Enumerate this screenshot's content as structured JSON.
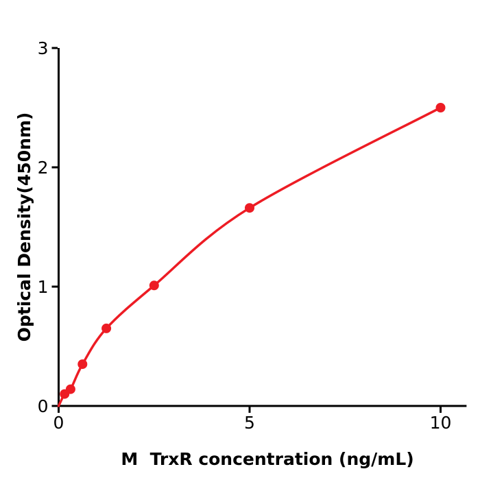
{
  "figure": {
    "background": "#ffffff"
  },
  "chart_data": {
    "type": "scatter",
    "title": "",
    "xlabel": "M  TrxR concentration (ng/mL)",
    "ylabel": "Optical Density(450nm)",
    "x": [
      0.156,
      0.313,
      0.625,
      1.25,
      2.5,
      5,
      10
    ],
    "y": [
      0.1,
      0.14,
      0.35,
      0.65,
      1.01,
      1.66,
      2.5
    ],
    "fit_line": {
      "description": "smooth fitted curve through origin and all data points",
      "anchors": [
        [
          0,
          0
        ],
        [
          0.156,
          0.1
        ],
        [
          0.313,
          0.14
        ],
        [
          0.625,
          0.35
        ],
        [
          1.25,
          0.65
        ],
        [
          2.5,
          1.01
        ],
        [
          5,
          1.66
        ],
        [
          10,
          2.5
        ]
      ]
    },
    "xlim": [
      0,
      10.68
    ],
    "ylim": [
      0,
      3
    ],
    "xticks": [
      0,
      5,
      10
    ],
    "yticks": [
      0,
      1,
      2,
      3
    ],
    "grid": false,
    "legend": null,
    "colors": {
      "series": "#ed1c24",
      "axis": "#000000",
      "text": "#000000"
    }
  }
}
